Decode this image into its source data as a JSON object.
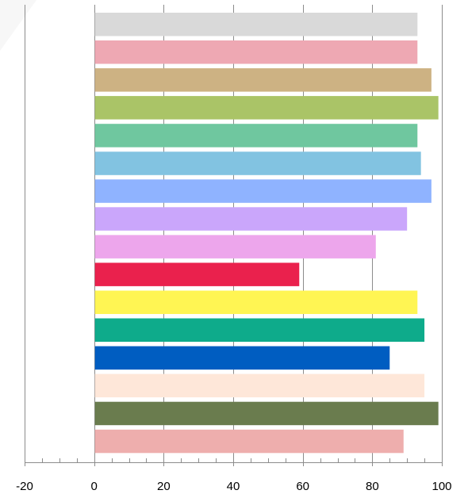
{
  "chart_data": {
    "type": "bar",
    "orientation": "horizontal",
    "title": "",
    "xlabel": "",
    "ylabel": "",
    "xlim": [
      -20,
      100
    ],
    "xticks": [
      -20,
      0,
      20,
      40,
      60,
      80,
      100
    ],
    "xtick_labels": [
      "-20",
      "0",
      "20",
      "40",
      "60",
      "80",
      "100"
    ],
    "grid": "vertical",
    "legend": "none",
    "bars": [
      {
        "value": 93,
        "color": "#d9d9d9"
      },
      {
        "value": 93,
        "color": "#eea8b3"
      },
      {
        "value": 97,
        "color": "#cdb283"
      },
      {
        "value": 99,
        "color": "#aac467"
      },
      {
        "value": 93,
        "color": "#6fc79f"
      },
      {
        "value": 94,
        "color": "#82c3e1"
      },
      {
        "value": 97,
        "color": "#8fb3ff"
      },
      {
        "value": 90,
        "color": "#caa6fb"
      },
      {
        "value": 81,
        "color": "#eda6ec"
      },
      {
        "value": 59,
        "color": "#ea214d"
      },
      {
        "value": 93,
        "color": "#fff553"
      },
      {
        "value": 95,
        "color": "#0eab8b"
      },
      {
        "value": 85,
        "color": "#005dc1"
      },
      {
        "value": 95,
        "color": "#fee7d9"
      },
      {
        "value": 99,
        "color": "#6a7c4e"
      },
      {
        "value": 89,
        "color": "#eeaead"
      }
    ]
  }
}
